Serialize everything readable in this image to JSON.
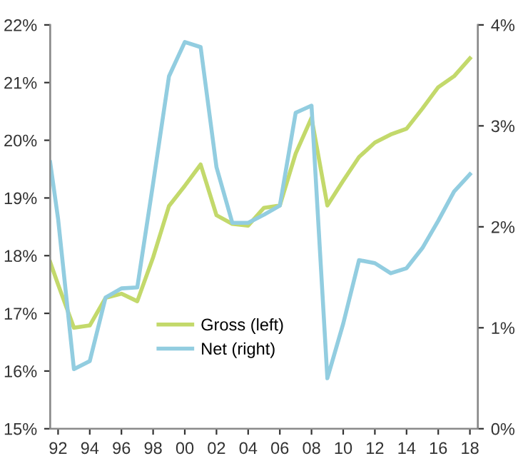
{
  "chart_data": {
    "type": "line",
    "x": [
      1991.5,
      1992,
      1993,
      1994,
      1995,
      1996,
      1997,
      1998,
      1999,
      2000,
      2001,
      2002,
      2003,
      2004,
      2005,
      2006,
      2007,
      2008,
      2009,
      2010,
      2011,
      2012,
      2013,
      2014,
      2015,
      2016,
      2017,
      2018
    ],
    "series": [
      {
        "name": "Gross (left)",
        "color": "#c3d96b",
        "values": [
          17.89,
          17.5,
          16.75,
          16.79,
          17.27,
          17.34,
          17.21,
          17.97,
          18.86,
          19.21,
          19.58,
          18.7,
          18.55,
          18.52,
          18.83,
          18.87,
          19.77,
          20.39,
          18.87,
          19.3,
          19.71,
          19.96,
          20.1,
          20.2,
          20.55,
          20.92,
          21.11,
          21.42
        ]
      },
      {
        "name": "Net (right)",
        "color": "#92cde0",
        "axis": "y2",
        "values": [
          2.64,
          2.08,
          0.59,
          0.67,
          1.3,
          1.39,
          1.4,
          2.43,
          3.49,
          3.83,
          3.78,
          2.59,
          2.04,
          2.04,
          2.12,
          2.21,
          3.13,
          3.2,
          0.5,
          1.04,
          1.67,
          1.64,
          1.54,
          1.59,
          1.79,
          2.06,
          2.35,
          2.52
        ]
      }
    ],
    "xlim": [
      1991.5,
      2018.5
    ],
    "xticks": [
      {
        "value": 1992,
        "label": "92"
      },
      {
        "value": 1994,
        "label": "94"
      },
      {
        "value": 1996,
        "label": "96"
      },
      {
        "value": 1998,
        "label": "98"
      },
      {
        "value": 2000,
        "label": "00"
      },
      {
        "value": 2002,
        "label": "02"
      },
      {
        "value": 2004,
        "label": "04"
      },
      {
        "value": 2006,
        "label": "06"
      },
      {
        "value": 2008,
        "label": "08"
      },
      {
        "value": 2010,
        "label": "10"
      },
      {
        "value": 2012,
        "label": "12"
      },
      {
        "value": 2014,
        "label": "14"
      },
      {
        "value": 2016,
        "label": "16"
      },
      {
        "value": 2018,
        "label": "18"
      }
    ],
    "ylim": [
      15,
      22
    ],
    "yticks": [
      {
        "value": 15,
        "label": "15%"
      },
      {
        "value": 16,
        "label": "16%"
      },
      {
        "value": 17,
        "label": "17%"
      },
      {
        "value": 18,
        "label": "18%"
      },
      {
        "value": 19,
        "label": "19%"
      },
      {
        "value": 20,
        "label": "20%"
      },
      {
        "value": 21,
        "label": "21%"
      },
      {
        "value": 22,
        "label": "22%"
      }
    ],
    "y2lim": [
      0,
      4
    ],
    "y2ticks": [
      {
        "value": 0,
        "label": "0%"
      },
      {
        "value": 1,
        "label": "1%"
      },
      {
        "value": 2,
        "label": "2%"
      },
      {
        "value": 3,
        "label": "3%"
      },
      {
        "value": 4,
        "label": "4%"
      }
    ],
    "grid": false,
    "legend": "bottom",
    "marker": "none",
    "line_style": "solid"
  }
}
